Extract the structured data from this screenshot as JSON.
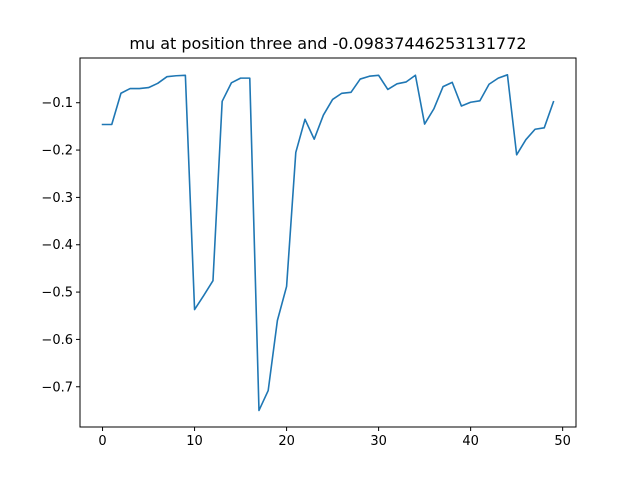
{
  "chart_data": {
    "type": "line",
    "title": "mu at position three and -0.09837446253131772",
    "xlabel": "",
    "ylabel": "",
    "xlim": [
      -2.45,
      51.45
    ],
    "ylim": [
      -0.785,
      -0.0055
    ],
    "xticks": [
      0,
      10,
      20,
      30,
      40,
      50
    ],
    "yticks": [
      -0.7,
      -0.6,
      -0.5,
      -0.4,
      -0.3,
      -0.2,
      -0.1
    ],
    "xtick_labels": [
      "0",
      "10",
      "20",
      "30",
      "40",
      "50"
    ],
    "ytick_labels": [
      "−0.7",
      "−0.6",
      "−0.5",
      "−0.4",
      "−0.3",
      "−0.2",
      "−0.1"
    ],
    "grid": false,
    "legend": "none",
    "colors": {
      "line": "#1f77b4",
      "axes": "#000000",
      "background": "#ffffff"
    },
    "series": [
      {
        "x": [
          0,
          1,
          2,
          3,
          4,
          5,
          6,
          7,
          8,
          9,
          10,
          11,
          12,
          13,
          14,
          15,
          16,
          17,
          18,
          19,
          20,
          21,
          22,
          23,
          24,
          25,
          26,
          27,
          28,
          29,
          30,
          31,
          32,
          33,
          34,
          35,
          36,
          37,
          38,
          39,
          40,
          41,
          42,
          43,
          44,
          45,
          46,
          47,
          48,
          49
        ],
        "y": [
          -0.146,
          -0.146,
          -0.08,
          -0.07,
          -0.07,
          -0.068,
          -0.059,
          -0.045,
          -0.043,
          -0.042,
          -0.537,
          -0.507,
          -0.476,
          -0.097,
          -0.058,
          -0.048,
          -0.048,
          -0.75,
          -0.708,
          -0.56,
          -0.488,
          -0.205,
          -0.135,
          -0.177,
          -0.126,
          -0.093,
          -0.08,
          -0.078,
          -0.05,
          -0.044,
          -0.042,
          -0.072,
          -0.06,
          -0.056,
          -0.042,
          -0.145,
          -0.113,
          -0.066,
          -0.057,
          -0.107,
          -0.099,
          -0.096,
          -0.061,
          -0.048,
          -0.041,
          -0.21,
          -0.178,
          -0.156,
          -0.153,
          -0.098
        ]
      }
    ]
  }
}
